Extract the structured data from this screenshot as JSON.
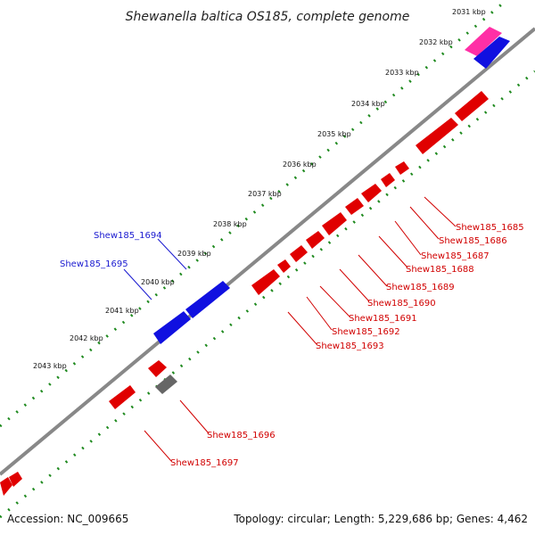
{
  "title": "Shewanella baltica OS185, complete genome",
  "footer": {
    "accession": "Accession: NC_009665",
    "topology": "Topology: circular; Length: 5,229,686 bp; Genes: 4,462"
  },
  "colors": {
    "forward_gene": "#e00000",
    "reverse_gene": "#1010e0",
    "rna_gene": "#ff2fa6",
    "pseudo_gene": "#666666",
    "backbone": "#888888",
    "tick_green": "#1f8a1f",
    "label_red": "#d10000",
    "label_blue": "#1a1ad0"
  },
  "kbp_ticks": [
    "2031 kbp",
    "2032 kbp",
    "2033 kbp",
    "2034 kbp",
    "2035 kbp",
    "2036 kbp",
    "2037 kbp",
    "2038 kbp",
    "2039 kbp",
    "2040 kbp",
    "2041 kbp",
    "2042 kbp",
    "2043 kbp"
  ],
  "gene_labels_red": [
    "Shew185_1685",
    "Shew185_1686",
    "Shew185_1687",
    "Shew185_1688",
    "Shew185_1689",
    "Shew185_1690",
    "Shew185_1691",
    "Shew185_1692",
    "Shew185_1693",
    "Shew185_1696",
    "Shew185_1697"
  ],
  "gene_labels_blue": [
    "Shew185_1694",
    "Shew185_1695"
  ]
}
